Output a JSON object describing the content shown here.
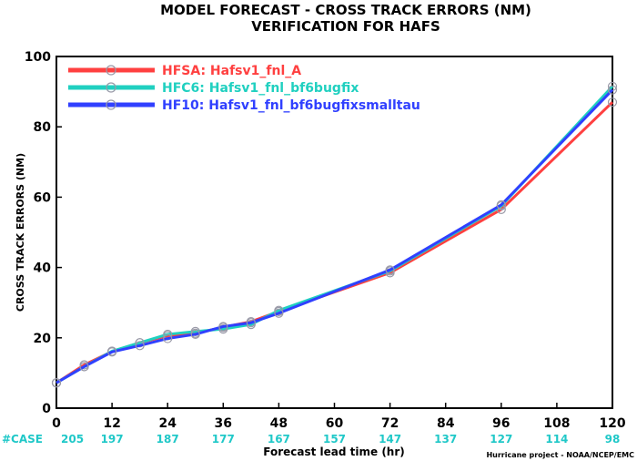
{
  "chart_data": {
    "type": "line",
    "title": "MODEL FORECAST - CROSS TRACK ERRORS (NM)",
    "subtitle": "VERIFICATION FOR HAFS",
    "xlabel": "Forecast lead time (hr)",
    "ylabel": "CROSS TRACK ERRORS (NM)",
    "xlim": [
      0,
      120
    ],
    "ylim": [
      0,
      100
    ],
    "xticks": [
      0,
      12,
      24,
      36,
      48,
      60,
      72,
      84,
      96,
      108,
      120
    ],
    "yticks": [
      0,
      20,
      40,
      60,
      80,
      100
    ],
    "grid": false,
    "legend_position": "top-left",
    "case_label": "#CASE",
    "cases": [
      205,
      197,
      187,
      177,
      167,
      157,
      147,
      137,
      127,
      114,
      98
    ],
    "credit": "Hurricane project - NOAA/NCEP/EMC",
    "series": [
      {
        "name": "HFSA: Hafsv1_fnl_A",
        "color": "#ff4040",
        "x": [
          0,
          6,
          12,
          18,
          24,
          30,
          36,
          42,
          48,
          72,
          96,
          120
        ],
        "values": [
          7.2,
          12.3,
          16.1,
          18.6,
          20.6,
          21.3,
          23.0,
          24.6,
          27.5,
          38.5,
          56.5,
          87.0
        ]
      },
      {
        "name": "HFC6: Hafsv1_fnl_bf6bugfix",
        "color": "#20d0c0",
        "x": [
          0,
          6,
          12,
          18,
          24,
          30,
          36,
          42,
          48,
          72,
          96,
          120
        ],
        "values": [
          7.2,
          11.8,
          16.2,
          18.6,
          21.0,
          21.8,
          22.5,
          23.8,
          27.8,
          39.0,
          57.5,
          91.5
        ]
      },
      {
        "name": "HF10: Hafsv1_fnl_bf6bugfixsmalltau",
        "color": "#3040ff",
        "x": [
          0,
          6,
          12,
          18,
          24,
          30,
          36,
          42,
          48,
          72,
          96,
          120
        ],
        "values": [
          7.2,
          11.8,
          16.0,
          17.8,
          19.8,
          21.0,
          23.2,
          24.3,
          27.0,
          39.3,
          57.8,
          90.5
        ]
      }
    ]
  }
}
